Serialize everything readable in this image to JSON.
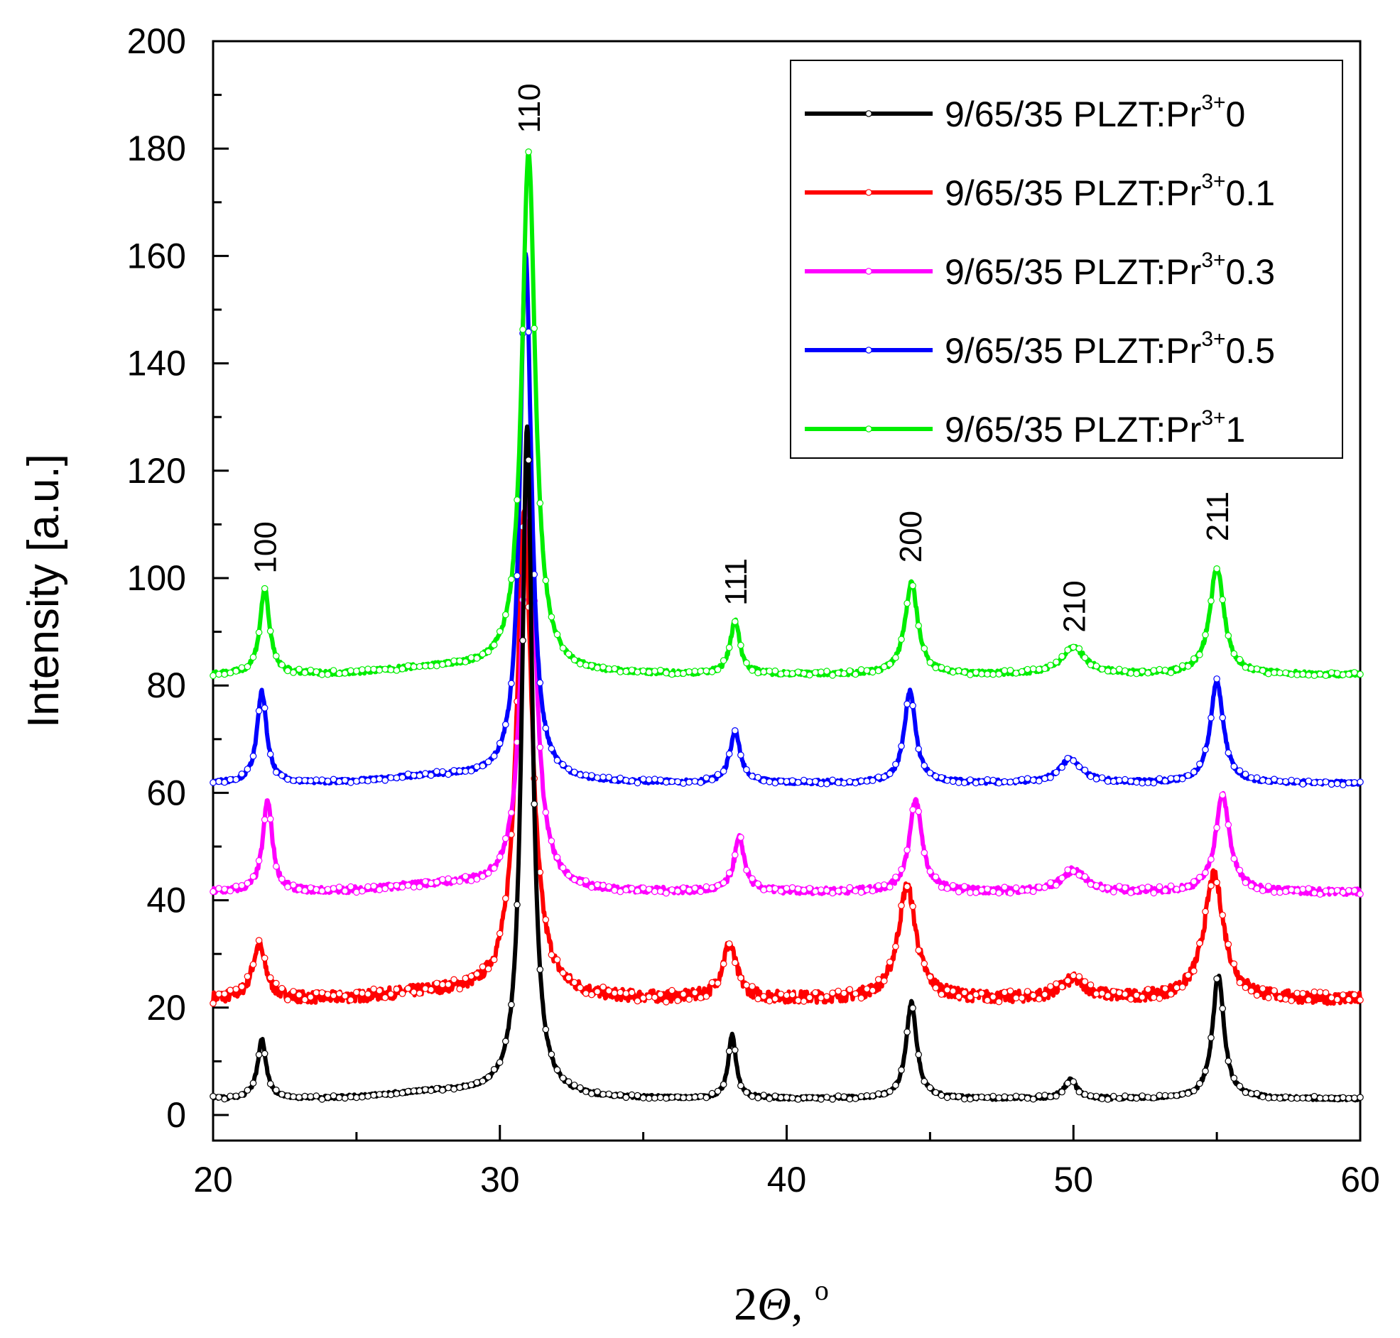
{
  "chart_data": {
    "type": "line",
    "title": "",
    "xlabel": {
      "main": "2",
      "symbol": "Θ",
      "suffix": ", ",
      "degree": "o"
    },
    "ylabel": "Intensity [a.u.]",
    "xlim": [
      20,
      60
    ],
    "ylim": [
      0,
      200
    ],
    "xticks": [
      20,
      30,
      40,
      50,
      60
    ],
    "yticks": [
      0,
      20,
      40,
      60,
      80,
      100,
      120,
      140,
      160,
      180,
      200
    ],
    "grid": false,
    "legend_position": "top-right",
    "peaks": [
      {
        "label": "100",
        "x": 21.8,
        "y": 99
      },
      {
        "label": "110",
        "x": 31.0,
        "y": 181
      },
      {
        "label": "111",
        "x": 38.2,
        "y": 93
      },
      {
        "label": "200",
        "x": 44.3,
        "y": 101
      },
      {
        "label": "210",
        "x": 50.0,
        "y": 88
      },
      {
        "label": "211",
        "x": 55.0,
        "y": 105
      }
    ],
    "series": [
      {
        "name_prefix": "9/65/35 PLZT:Pr",
        "name_sup": "3+",
        "name_suffix": "0",
        "color": "#000000",
        "baseline": 3,
        "noise": 0.35,
        "shift": 0,
        "peaks": [
          [
            21.7,
            11,
            0.18
          ],
          [
            30.95,
            125,
            0.22
          ],
          [
            38.1,
            12,
            0.16
          ],
          [
            44.35,
            18,
            0.22
          ],
          [
            49.9,
            3.5,
            0.25
          ],
          [
            55.05,
            23,
            0.24
          ]
        ]
      },
      {
        "name_prefix": "9/65/35 PLZT:Pr",
        "name_sup": "3+",
        "name_suffix": "0.1",
        "color": "#ff0000",
        "baseline": 21.5,
        "noise": 1.1,
        "shift": 0,
        "peaks": [
          [
            21.6,
            10,
            0.28
          ],
          [
            30.85,
            90,
            0.32
          ],
          [
            38.0,
            10,
            0.3
          ],
          [
            44.2,
            21,
            0.38
          ],
          [
            50.0,
            3.5,
            0.55
          ],
          [
            54.9,
            23,
            0.42
          ]
        ]
      },
      {
        "name_prefix": "9/65/35 PLZT:Pr",
        "name_sup": "3+",
        "name_suffix": "0.3",
        "color": "#ff00ff",
        "baseline": 41.5,
        "noise": 0.6,
        "shift": 0,
        "peaks": [
          [
            21.9,
            17,
            0.2
          ],
          [
            31.0,
            82,
            0.28
          ],
          [
            38.35,
            10,
            0.22
          ],
          [
            44.5,
            17,
            0.27
          ],
          [
            50.0,
            4,
            0.5
          ],
          [
            55.2,
            18,
            0.3
          ]
        ]
      },
      {
        "name_prefix": "9/65/35 PLZT:Pr",
        "name_sup": "3+",
        "name_suffix": "0.5",
        "color": "#0000ff",
        "baseline": 61.8,
        "noise": 0.4,
        "shift": 0,
        "peaks": [
          [
            21.7,
            17,
            0.2
          ],
          [
            30.9,
            98,
            0.24
          ],
          [
            38.2,
            9.5,
            0.22
          ],
          [
            44.3,
            17,
            0.24
          ],
          [
            49.9,
            4.5,
            0.45
          ],
          [
            55.0,
            19,
            0.27
          ]
        ]
      },
      {
        "name_prefix": "9/65/35 PLZT:Pr",
        "name_sup": "3+",
        "name_suffix": "1",
        "color": "#00ee00",
        "baseline": 82,
        "noise": 0.45,
        "shift": 0,
        "peaks": [
          [
            21.8,
            16,
            0.2
          ],
          [
            31.0,
            97,
            0.28
          ],
          [
            38.2,
            10,
            0.2
          ],
          [
            44.35,
            17,
            0.27
          ],
          [
            50.0,
            5,
            0.5
          ],
          [
            55.0,
            20,
            0.3
          ]
        ]
      }
    ]
  }
}
